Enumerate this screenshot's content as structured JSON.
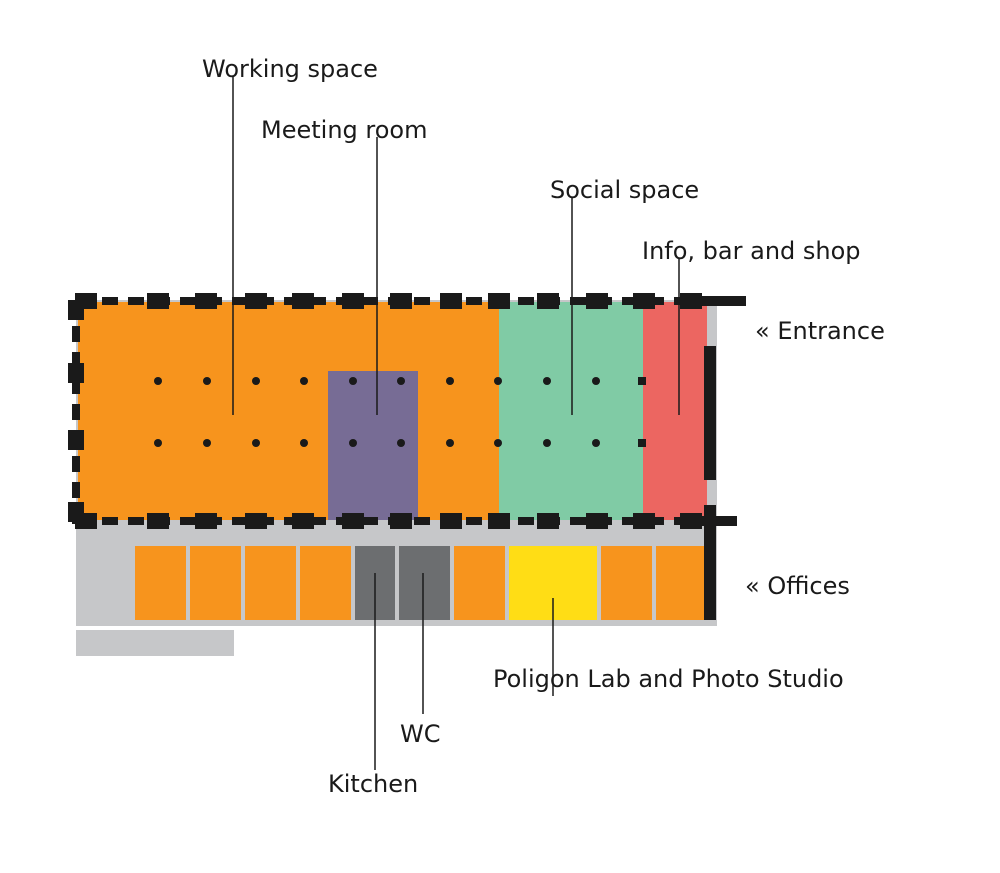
{
  "labels": {
    "working_space": "Working space",
    "meeting_room": "Meeting room",
    "social_space": "Social space",
    "info_bar_shop": "Info, bar and shop",
    "entrance": "« Entrance",
    "offices": "« Offices",
    "poligon_lab": "Poligon Lab and Photo Studio",
    "wc": "WC",
    "kitchen": "Kitchen"
  },
  "colors": {
    "working_space": "#f7941d",
    "meeting_room": "#776c95",
    "social_space": "#80cba5",
    "info_bar_shop": "#ec6661",
    "office": "#f7941d",
    "wc_kitchen": "#6c6e70",
    "poligon_lab": "#ffdd15",
    "corridor": "#c6c7c9",
    "walls": "#1a1a1a"
  }
}
